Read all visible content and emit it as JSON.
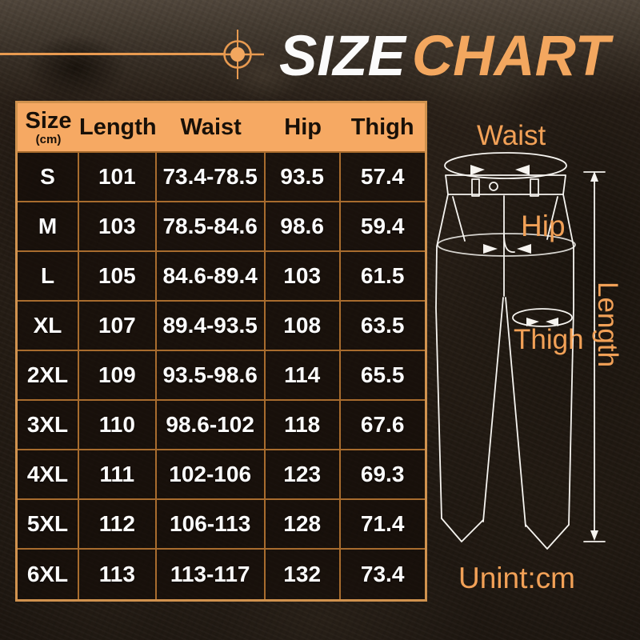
{
  "title": {
    "white": "SIZE",
    "orange": "CHART"
  },
  "chart_data": {
    "type": "table",
    "title": "SIZE CHART",
    "columns": [
      "Size",
      "Length",
      "Waist",
      "Hip",
      "Thigh"
    ],
    "size_column_unit": "(cm)",
    "rows": [
      [
        "S",
        "101",
        "73.4-78.5",
        "93.5",
        "57.4"
      ],
      [
        "M",
        "103",
        "78.5-84.6",
        "98.6",
        "59.4"
      ],
      [
        "L",
        "105",
        "84.6-89.4",
        "103",
        "61.5"
      ],
      [
        "XL",
        "107",
        "89.4-93.5",
        "108",
        "63.5"
      ],
      [
        "2XL",
        "109",
        "93.5-98.6",
        "114",
        "65.5"
      ],
      [
        "3XL",
        "110",
        "98.6-102",
        "118",
        "67.6"
      ],
      [
        "4XL",
        "111",
        "102-106",
        "123",
        "69.3"
      ],
      [
        "5XL",
        "112",
        "106-113",
        "128",
        "71.4"
      ],
      [
        "6XL",
        "113",
        "113-117",
        "132",
        "73.4"
      ]
    ],
    "unit": "cm"
  },
  "diagram": {
    "labels": {
      "waist": "Waist",
      "hip": "Hip",
      "thigh": "Thigh",
      "length": "Length"
    },
    "unit_note": "Unint:cm"
  },
  "icons": {
    "crosshair": "crosshair-icon"
  },
  "colors": {
    "accent_orange": "#f2a157",
    "title_orange": "#f3a75f",
    "header_bg": "#f6a963",
    "table_inner_border": "#a86c2e",
    "table_outer_border": "#d0924e",
    "line_art": "#f6f4f0"
  }
}
